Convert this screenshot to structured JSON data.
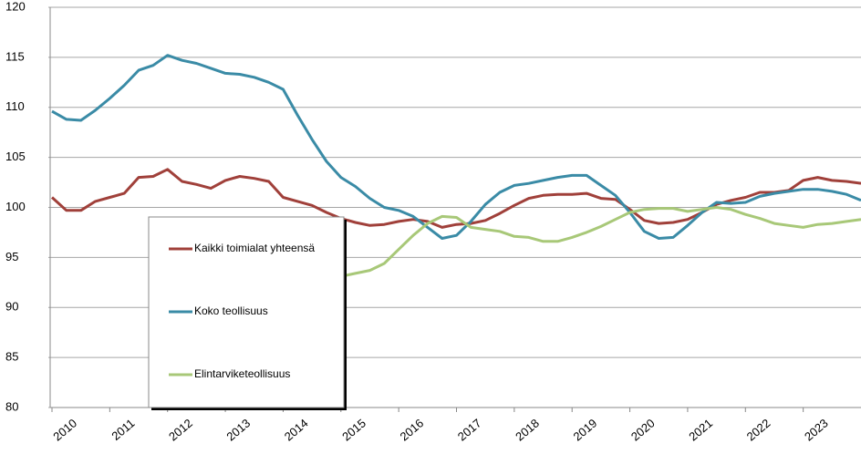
{
  "chart_data": {
    "type": "line",
    "categories": [
      "2010",
      null,
      null,
      null,
      "2011",
      null,
      null,
      null,
      "2012",
      null,
      null,
      null,
      "2013",
      null,
      null,
      null,
      "2014",
      null,
      null,
      null,
      "2015",
      null,
      null,
      null,
      "2016",
      null,
      null,
      null,
      "2017",
      null,
      null,
      null,
      "2018",
      null,
      null,
      null,
      "2019",
      null,
      null,
      null,
      "2020",
      null,
      null,
      null,
      "2021",
      null,
      null,
      null,
      "2022",
      null,
      null,
      null,
      "2023",
      null,
      null,
      null,
      null
    ],
    "series": [
      {
        "name": "Kaikki toimialat yhteensä",
        "color": "#a0403a",
        "values": [
          101.0,
          99.7,
          99.7,
          100.6,
          101.0,
          101.4,
          103.0,
          103.1,
          103.8,
          102.6,
          102.3,
          101.9,
          102.7,
          103.1,
          102.9,
          102.6,
          101.0,
          100.6,
          100.2,
          99.5,
          98.9,
          98.5,
          98.2,
          98.3,
          98.6,
          98.8,
          98.6,
          98.0,
          98.3,
          98.4,
          98.7,
          99.4,
          100.2,
          100.9,
          101.2,
          101.3,
          101.3,
          101.4,
          100.9,
          100.8,
          99.8,
          98.7,
          98.4,
          98.5,
          98.8,
          99.5,
          100.3,
          100.7,
          101.0,
          101.5,
          101.5,
          101.7,
          102.7,
          103.0,
          102.7,
          102.6,
          102.4
        ]
      },
      {
        "name": "Koko teollisuus",
        "color": "#3a8ba6",
        "values": [
          109.6,
          108.8,
          108.7,
          109.7,
          110.9,
          112.2,
          113.7,
          114.2,
          115.2,
          114.7,
          114.4,
          113.9,
          113.4,
          113.3,
          113.0,
          112.5,
          111.8,
          109.2,
          106.8,
          104.6,
          103.0,
          102.1,
          100.9,
          100.0,
          99.7,
          99.1,
          98.0,
          96.9,
          97.2,
          98.6,
          100.3,
          101.5,
          102.2,
          102.4,
          102.7,
          103.0,
          103.2,
          103.2,
          102.2,
          101.2,
          99.5,
          97.6,
          96.9,
          97.0,
          98.2,
          99.5,
          100.5,
          100.4,
          100.5,
          101.1,
          101.4,
          101.6,
          101.8,
          101.8,
          101.6,
          101.3,
          100.7
        ]
      },
      {
        "name": "Elintarviketeollisuus",
        "color": "#a8c878",
        "values": [
          null,
          null,
          null,
          null,
          null,
          null,
          null,
          null,
          null,
          null,
          null,
          null,
          null,
          null,
          null,
          null,
          null,
          null,
          null,
          null,
          93.1,
          93.4,
          93.7,
          94.4,
          95.8,
          97.2,
          98.4,
          99.1,
          99.0,
          98.0,
          97.8,
          97.6,
          97.1,
          97.0,
          96.6,
          96.6,
          97.0,
          97.5,
          98.1,
          98.8,
          99.5,
          99.8,
          99.9,
          99.9,
          99.6,
          99.8,
          100.0,
          99.8,
          99.3,
          98.9,
          98.4,
          98.2,
          98.0,
          98.3,
          98.4,
          98.6,
          98.8
        ]
      }
    ],
    "ylim": [
      80,
      120
    ],
    "yticks": [
      80,
      85,
      90,
      95,
      100,
      105,
      110,
      115,
      120
    ],
    "grid": true,
    "legend": "lower left"
  }
}
